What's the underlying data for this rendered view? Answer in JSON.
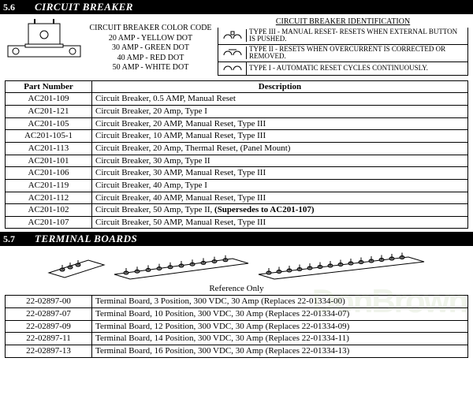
{
  "section1": {
    "num": "5.6",
    "title": "CIRCUIT BREAKER"
  },
  "colorCode": {
    "header": "CIRCUIT BREAKER COLOR CODE",
    "lines": [
      "20 AMP -  YELLOW DOT",
      "30 AMP -  GREEN DOT",
      "40 AMP -  RED DOT",
      "50 AMP -  WHITE DOT"
    ]
  },
  "ident": {
    "header": "CIRCUIT BREAKER IDENTIFICATION",
    "rows": [
      "TYPE III -  MANUAL RESET- RESETS WHEN EXTERNAL BUTTON IS PUSHED.",
      "TYPE II -  RESETS WHEN OVERCURRENT IS CORRECTED OR REMOVED.",
      "TYPE I -  AUTOMATIC RESET CYCLES CONTINUOUSLY."
    ]
  },
  "cbTable": {
    "headers": [
      "Part Number",
      "Description"
    ],
    "rows": [
      [
        "AC201-109",
        "Circuit Breaker, 0.5 AMP, Manual Reset"
      ],
      [
        "AC201-121",
        "Circuit Breaker, 20 Amp, Type I"
      ],
      [
        "AC201-105",
        "Circuit Breaker, 20 AMP, Manual Reset, Type III"
      ],
      [
        "AC201-105-1",
        "Circuit Breaker, 10 AMP, Manual Reset, Type III"
      ],
      [
        "AC201-113",
        "Circuit Breaker, 20 Amp, Thermal Reset, (Panel Mount)"
      ],
      [
        "AC201-101",
        "Circuit Breaker, 30 Amp, Type II"
      ],
      [
        "AC201-106",
        "Circuit Breaker, 30 AMP, Manual Reset, Type III"
      ],
      [
        "AC201-119",
        "Circuit Breaker, 40 Amp, Type I"
      ],
      [
        "AC201-112",
        "Circuit Breaker, 40 AMP, Manual Reset, Type III"
      ],
      [
        "AC201-102",
        "Circuit Breaker, 50 Amp, Type II, <b>(Supersedes to AC201-107)</b>"
      ],
      [
        "AC201-107",
        "Circuit Breaker, 50 AMP, Manual Reset, Type III"
      ]
    ]
  },
  "section2": {
    "num": "5.7",
    "title": "TERMINAL BOARDS"
  },
  "refOnly": "Reference Only",
  "tbTable": {
    "rows": [
      [
        "22-02897-00",
        "Terminal Board, 3 Position, 300 VDC, 30 Amp (Replaces 22-01334-00)"
      ],
      [
        "22-02897-07",
        "Terminal Board, 10 Position, 300 VDC, 30 Amp (Replaces 22-01334-07)"
      ],
      [
        "22-02897-09",
        "Terminal Board, 12 Position, 300 VDC, 30 Amp (Replaces 22-01334-09)"
      ],
      [
        "22-02897-11",
        "Terminal Board, 14 Position, 300 VDC, 30 Amp (Replaces 22-01334-11)"
      ],
      [
        "22-02897-13",
        "Terminal Board, 16 Position, 300 VDC, 30 Amp (Replaces 22-01334-13)"
      ]
    ]
  },
  "watermark": "DonBrown"
}
